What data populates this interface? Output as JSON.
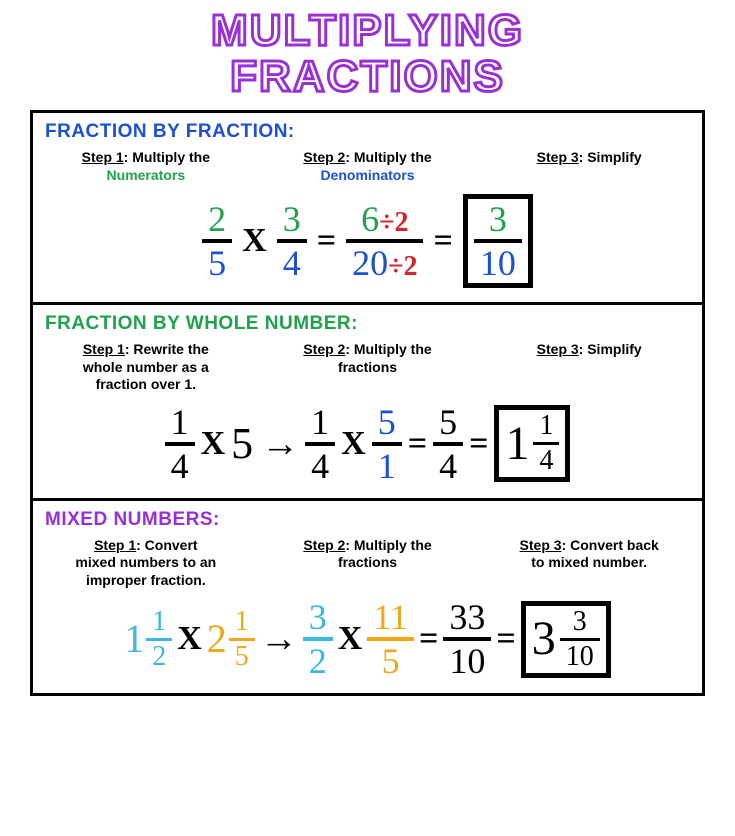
{
  "title_line1": "MULTIPLYING",
  "title_line2": "FRACTIONS",
  "colors": {
    "title_stroke": "#9b2fd6",
    "green": "#1fa24a",
    "blue": "#1b4fd6",
    "red": "#d7232a",
    "cyan": "#3ab8e0",
    "orange": "#f0a818",
    "black": "#000000",
    "section1_title": "#1b4fd6",
    "section2_title": "#1fa24a",
    "section3_title": "#9b2fd6"
  },
  "sections": [
    {
      "heading": "FRACTION BY FRACTION:",
      "steps": [
        {
          "label": "Step 1",
          "text_a": ": Multiply the",
          "text_b": "Numerators",
          "b_color": "#1fa24a"
        },
        {
          "label": "Step 2",
          "text_a": ": Multiply the",
          "text_b": "Denominators",
          "b_color": "#1b4fd6"
        },
        {
          "label": "Step 3",
          "text_a": ": Simplify",
          "text_b": "",
          "b_color": ""
        }
      ],
      "eq": {
        "f1": {
          "num": "2",
          "num_c": "#1fa24a",
          "den": "5",
          "den_c": "#1b4fd6"
        },
        "f2": {
          "num": "3",
          "num_c": "#1fa24a",
          "den": "4",
          "den_c": "#1b4fd6"
        },
        "f3": {
          "num": "6",
          "num_c": "#1fa24a",
          "num_div": "÷2",
          "num_div_c": "#d7232a",
          "den": "20",
          "den_c": "#1b4fd6",
          "den_div": "÷2",
          "den_div_c": "#d7232a"
        },
        "ans": {
          "num": "3",
          "num_c": "#1fa24a",
          "den": "10",
          "den_c": "#1b4fd6"
        }
      }
    },
    {
      "heading": "FRACTION BY WHOLE NUMBER:",
      "steps": [
        {
          "label": "Step 1",
          "text_a": ": Rewrite the",
          "text_b": "whole number as a",
          "text_c": "fraction over 1."
        },
        {
          "label": "Step 2",
          "text_a": ": Multiply the",
          "text_b": "fractions",
          "text_c": ""
        },
        {
          "label": "Step 3",
          "text_a": ": Simplify",
          "text_b": "",
          "text_c": ""
        }
      ],
      "eq": {
        "f1": {
          "num": "1",
          "den": "4"
        },
        "whole": "5",
        "f2": {
          "num": "1",
          "den": "4"
        },
        "f3": {
          "num": "5",
          "num_c": "#1b4fd6",
          "den": "1",
          "den_c": "#1b4fd6"
        },
        "f4": {
          "num": "5",
          "den": "4"
        },
        "ans_whole": "1",
        "ans_frac": {
          "num": "1",
          "den": "4"
        }
      }
    },
    {
      "heading": "MIXED NUMBERS:",
      "steps": [
        {
          "label": "Step 1",
          "text_a": ": Convert",
          "text_b": "mixed numbers to an",
          "text_c": "improper fraction."
        },
        {
          "label": "Step 2",
          "text_a": ": Multiply the",
          "text_b": "fractions",
          "text_c": ""
        },
        {
          "label": "Step 3",
          "text_a": ": Convert back",
          "text_b": "to mixed number.",
          "text_c": ""
        }
      ],
      "eq": {
        "m1": {
          "whole": "1",
          "num": "1",
          "den": "2",
          "color": "#3ab8e0"
        },
        "m2": {
          "whole": "2",
          "num": "1",
          "den": "5",
          "color": "#f0a818"
        },
        "f1": {
          "num": "3",
          "den": "2",
          "color": "#3ab8e0"
        },
        "f2": {
          "num": "11",
          "den": "5",
          "color": "#f0a818"
        },
        "f3": {
          "num": "33",
          "den": "10"
        },
        "ans_whole": "3",
        "ans_frac": {
          "num": "3",
          "den": "10"
        }
      }
    }
  ]
}
